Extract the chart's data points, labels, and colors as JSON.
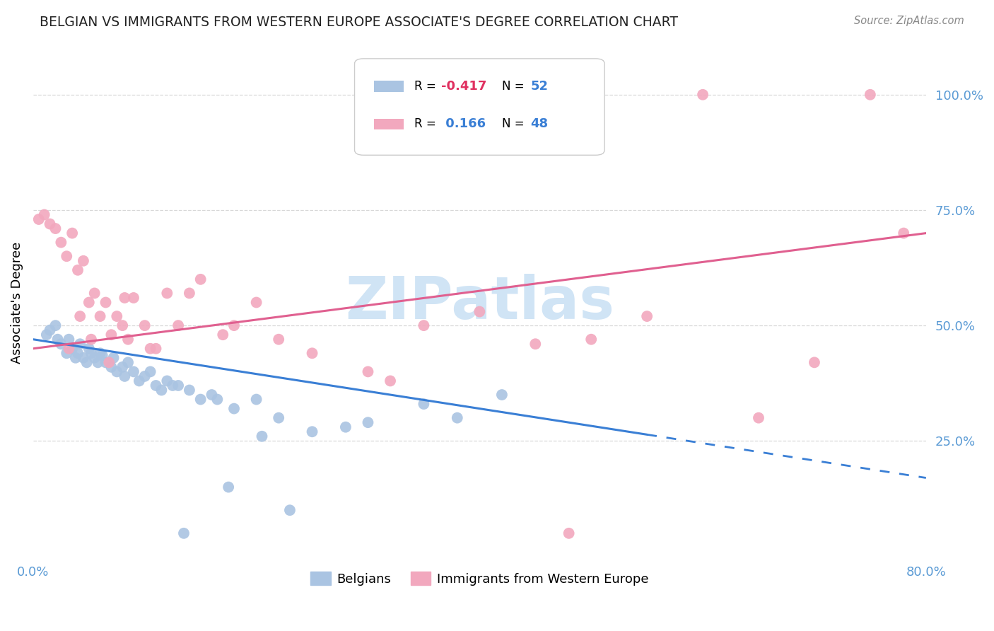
{
  "title": "BELGIAN VS IMMIGRANTS FROM WESTERN EUROPE ASSOCIATE'S DEGREE CORRELATION CHART",
  "source": "Source: ZipAtlas.com",
  "ylabel": "Associate's Degree",
  "legend_belgian_R": "-0.417",
  "legend_belgian_N": "52",
  "legend_immigrant_R": "0.166",
  "legend_immigrant_N": "48",
  "legend_label_1": "Belgians",
  "legend_label_2": "Immigrants from Western Europe",
  "belgian_color": "#aac4e2",
  "immigrant_color": "#f2a8be",
  "belgian_line_color": "#3a7fd5",
  "immigrant_line_color": "#e06090",
  "watermark_color": "#d0e4f5",
  "background_color": "#ffffff",
  "grid_color": "#d8d8d8",
  "title_color": "#222222",
  "source_color": "#888888",
  "axis_tick_color": "#5b9bd5",
  "xlim": [
    0,
    80
  ],
  "ylim": [
    0,
    110
  ],
  "belgian_x": [
    1.2,
    1.5,
    2.0,
    2.2,
    2.5,
    3.0,
    3.2,
    3.5,
    3.8,
    4.0,
    4.2,
    4.5,
    4.8,
    5.0,
    5.2,
    5.5,
    5.8,
    6.0,
    6.2,
    6.5,
    7.0,
    7.2,
    7.5,
    8.0,
    8.2,
    8.5,
    9.0,
    9.5,
    10.0,
    10.5,
    11.0,
    11.5,
    12.0,
    13.0,
    14.0,
    15.0,
    16.0,
    18.0,
    20.0,
    22.0,
    25.0,
    28.0,
    30.0,
    35.0,
    38.0,
    42.0,
    12.5,
    16.5,
    20.5,
    23.0,
    13.5,
    17.5
  ],
  "belgian_y": [
    48.0,
    49.0,
    50.0,
    47.0,
    46.0,
    44.0,
    47.0,
    45.0,
    43.0,
    44.0,
    46.0,
    43.0,
    42.0,
    45.0,
    44.0,
    43.0,
    42.0,
    44.0,
    43.5,
    42.0,
    41.0,
    43.0,
    40.0,
    41.0,
    39.0,
    42.0,
    40.0,
    38.0,
    39.0,
    40.0,
    37.0,
    36.0,
    38.0,
    37.0,
    36.0,
    34.0,
    35.0,
    32.0,
    34.0,
    30.0,
    27.0,
    28.0,
    29.0,
    33.0,
    30.0,
    35.0,
    37.0,
    34.0,
    26.0,
    10.0,
    5.0,
    15.0
  ],
  "immigrant_x": [
    0.5,
    1.0,
    1.5,
    2.0,
    2.5,
    3.0,
    3.5,
    4.0,
    4.5,
    5.0,
    5.5,
    6.0,
    6.5,
    7.0,
    7.5,
    8.0,
    8.5,
    9.0,
    10.0,
    11.0,
    12.0,
    13.0,
    15.0,
    17.0,
    20.0,
    22.0,
    25.0,
    30.0,
    35.0,
    40.0,
    45.0,
    50.0,
    55.0,
    60.0,
    65.0,
    70.0,
    75.0,
    78.0,
    3.2,
    4.2,
    5.2,
    6.8,
    8.2,
    10.5,
    14.0,
    18.0,
    32.0,
    48.0
  ],
  "immigrant_y": [
    73.0,
    74.0,
    72.0,
    71.0,
    68.0,
    65.0,
    70.0,
    62.0,
    64.0,
    55.0,
    57.0,
    52.0,
    55.0,
    48.0,
    52.0,
    50.0,
    47.0,
    56.0,
    50.0,
    45.0,
    57.0,
    50.0,
    60.0,
    48.0,
    55.0,
    47.0,
    44.0,
    40.0,
    50.0,
    53.0,
    46.0,
    47.0,
    52.0,
    100.0,
    30.0,
    42.0,
    100.0,
    70.0,
    45.0,
    52.0,
    47.0,
    42.0,
    56.0,
    45.0,
    57.0,
    50.0,
    38.0,
    5.0
  ],
  "belgian_trend_x0": 0,
  "belgian_trend_x1": 80,
  "belgian_trend_y0": 47.0,
  "belgian_trend_y1": 17.0,
  "belgian_solid_end": 55,
  "immigrant_trend_x0": 0,
  "immigrant_trend_x1": 80,
  "immigrant_trend_y0": 45.0,
  "immigrant_trend_y1": 70.0
}
